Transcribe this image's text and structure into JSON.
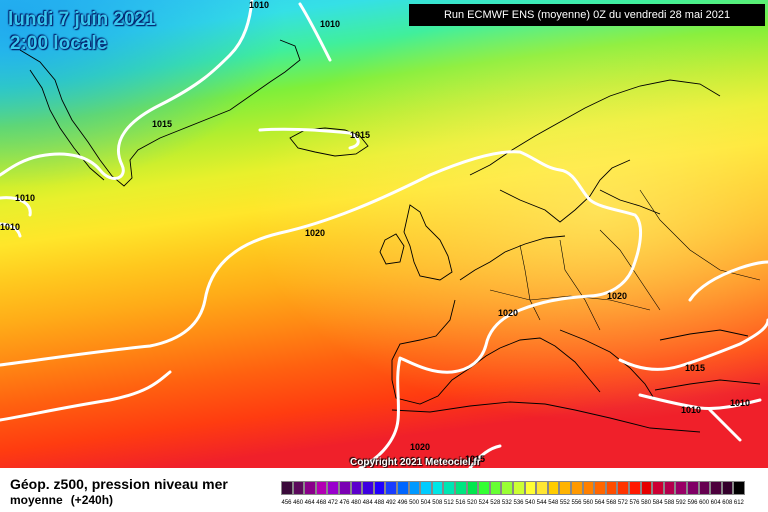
{
  "header": {
    "date_line": "lundi 7 juin 2021",
    "time_line": "2:00 locale",
    "run_info": "Run ECMWF ENS (moyenne) 0Z du vendredi 28 mai 2021"
  },
  "copyright": "Copyright 2021 Meteociel.fr",
  "footer": {
    "title": "Géop. z500, pression niveau mer",
    "subtitle": "moyenne",
    "hours": "(+240h)"
  },
  "isobar_labels": [
    "1010",
    "1010",
    "1015",
    "1015",
    "1010",
    "1010",
    "1020",
    "1020",
    "1020",
    "1015",
    "1010",
    "1010",
    "1020",
    "1015"
  ],
  "colors": {
    "land_outline": "#000000",
    "isobar": "#ffffff"
  },
  "legend": {
    "values": [
      "456",
      "460",
      "464",
      "468",
      "472",
      "476",
      "480",
      "484",
      "488",
      "492",
      "496",
      "500",
      "504",
      "508",
      "512",
      "516",
      "520",
      "524",
      "528",
      "532",
      "536",
      "540",
      "544",
      "548",
      "552",
      "556",
      "560",
      "564",
      "568",
      "572",
      "576",
      "580",
      "584",
      "588",
      "592",
      "596",
      "600",
      "604",
      "608",
      "612"
    ],
    "colors": [
      "#3a0a3a",
      "#5b0a5b",
      "#8a008a",
      "#b300b3",
      "#9900cc",
      "#7a00b3",
      "#5c00cc",
      "#3d00e0",
      "#2000ff",
      "#1a3dff",
      "#0066ff",
      "#0099ff",
      "#00ccff",
      "#00e6e6",
      "#00e6b3",
      "#00e680",
      "#00e64d",
      "#33ff33",
      "#66ff33",
      "#99ff33",
      "#ccff33",
      "#ffff33",
      "#ffe633",
      "#ffcc00",
      "#ffb300",
      "#ff9900",
      "#ff8000",
      "#ff6600",
      "#ff4d00",
      "#ff3300",
      "#ff1a00",
      "#e60000",
      "#cc0033",
      "#b3004d",
      "#990066",
      "#800066",
      "#660050",
      "#4d003d",
      "#33002b",
      "#000000"
    ]
  }
}
